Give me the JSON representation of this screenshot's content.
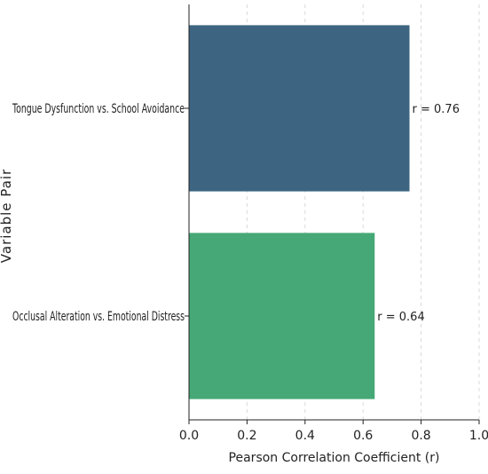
{
  "chart_data": {
    "type": "bar",
    "orientation": "horizontal",
    "categories": [
      "Tongue Dysfunction vs. School Avoidance",
      "Occlusal Alteration vs. Emotional Distress"
    ],
    "values": [
      0.76,
      0.64
    ],
    "bar_labels": [
      "r = 0.76",
      "r = 0.64"
    ],
    "colors": [
      "#3d6582",
      "#46a876"
    ],
    "xlabel": "Pearson Correlation Coefficient (r)",
    "ylabel": "Variable Pair",
    "xlim": [
      0.0,
      1.0
    ],
    "x_ticks": [
      "0.0",
      "0.2",
      "0.4",
      "0.6",
      "0.8",
      "1.0"
    ],
    "grid": "x-dashed",
    "legend": "none"
  }
}
